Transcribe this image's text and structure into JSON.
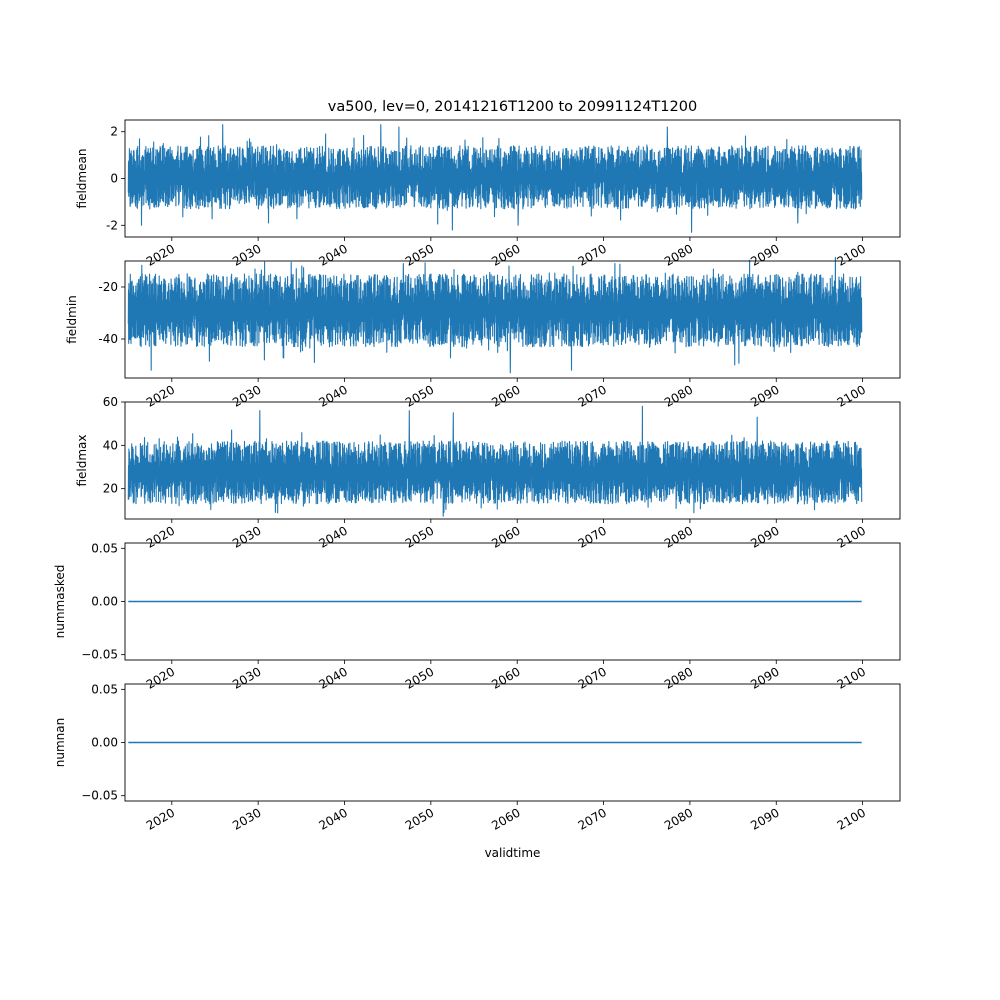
{
  "figure": {
    "title": "va500, lev=0, 20141216T1200 to 20991124T1200",
    "xlabel": "validtime"
  },
  "chart_data": [
    {
      "type": "line",
      "ylabel": "fieldmean",
      "xlim": [
        "2014-08-01",
        "2104-05-01"
      ],
      "ylim": [
        -2.5,
        2.5
      ],
      "yticks": [
        -2,
        0,
        2
      ],
      "xticks": [
        "2020",
        "2030",
        "2040",
        "2050",
        "2060",
        "2070",
        "2080",
        "2090",
        "2100"
      ],
      "series": [
        {
          "color": "#1f77b4",
          "x_range": [
            "2014-12-16T12:00",
            "2099-11-24T12:00"
          ],
          "typical_range": [
            -1.3,
            1.4
          ],
          "extreme_range": [
            -2.3,
            2.3
          ],
          "spikes": [
            {
              "x": 2025.9,
              "y": 2.3
            },
            {
              "x": 2044.2,
              "y": 2.3
            },
            {
              "x": 2046.3,
              "y": 2.2
            },
            {
              "x": 2077.4,
              "y": 2.2
            },
            {
              "x": 2052.5,
              "y": -2.2
            },
            {
              "x": 2080.2,
              "y": -2.3
            },
            {
              "x": 2016.5,
              "y": -2.0
            },
            {
              "x": 2031.2,
              "y": -1.9
            },
            {
              "x": 2060.1,
              "y": -2.0
            },
            {
              "x": 2092.5,
              "y": -1.9
            }
          ]
        }
      ]
    },
    {
      "type": "line",
      "ylabel": "fieldmin",
      "xlim": [
        "2014-08-01",
        "2104-05-01"
      ],
      "ylim": [
        -55,
        -10
      ],
      "yticks": [
        -40,
        -20
      ],
      "xticks": [
        "2020",
        "2030",
        "2040",
        "2050",
        "2060",
        "2070",
        "2080",
        "2090",
        "2100"
      ],
      "series": [
        {
          "color": "#1f77b4",
          "x_range": [
            "2014-12-16T12:00",
            "2099-11-24T12:00"
          ],
          "typical_range": [
            -43,
            -15
          ],
          "extreme_range": [
            -53,
            -11
          ],
          "spikes": [
            {
              "x": 2017.6,
              "y": -52
            },
            {
              "x": 2059.2,
              "y": -53
            },
            {
              "x": 2066.3,
              "y": -52
            },
            {
              "x": 2046.8,
              "y": -11
            },
            {
              "x": 2071.3,
              "y": -11
            },
            {
              "x": 2036.5,
              "y": -49
            },
            {
              "x": 2085.2,
              "y": -50
            }
          ]
        }
      ]
    },
    {
      "type": "line",
      "ylabel": "fieldmax",
      "xlim": [
        "2014-08-01",
        "2104-05-01"
      ],
      "ylim": [
        6,
        60
      ],
      "yticks": [
        20,
        40,
        60
      ],
      "xticks": [
        "2020",
        "2030",
        "2040",
        "2050",
        "2060",
        "2070",
        "2080",
        "2090",
        "2100"
      ],
      "series": [
        {
          "color": "#1f77b4",
          "x_range": [
            "2014-12-16T12:00",
            "2099-11-24T12:00"
          ],
          "typical_range": [
            13,
            42
          ],
          "extreme_range": [
            9,
            58
          ],
          "spikes": [
            {
              "x": 2074.5,
              "y": 58
            },
            {
              "x": 2030.2,
              "y": 56
            },
            {
              "x": 2047.5,
              "y": 56
            },
            {
              "x": 2052.6,
              "y": 55
            },
            {
              "x": 2087.8,
              "y": 53
            },
            {
              "x": 2032.0,
              "y": 9
            },
            {
              "x": 2051.5,
              "y": 9
            }
          ]
        }
      ]
    },
    {
      "type": "line",
      "ylabel": "nummasked",
      "xlim": [
        "2014-08-01",
        "2104-05-01"
      ],
      "ylim": [
        -0.055,
        0.055
      ],
      "yticks": [
        -0.05,
        0.0,
        0.05
      ],
      "yticklabels": [
        "−0.05",
        "0.00",
        "0.05"
      ],
      "xticks": [
        "2020",
        "2030",
        "2040",
        "2050",
        "2060",
        "2070",
        "2080",
        "2090",
        "2100"
      ],
      "series": [
        {
          "color": "#1f77b4",
          "x": [
            "2014-12-16T12:00",
            "2099-11-24T12:00"
          ],
          "y": [
            0,
            0
          ]
        }
      ]
    },
    {
      "type": "line",
      "ylabel": "numnan",
      "xlim": [
        "2014-08-01",
        "2104-05-01"
      ],
      "ylim": [
        -0.055,
        0.055
      ],
      "yticks": [
        -0.05,
        0.0,
        0.05
      ],
      "yticklabels": [
        "−0.05",
        "0.00",
        "0.05"
      ],
      "xticks": [
        "2020",
        "2030",
        "2040",
        "2050",
        "2060",
        "2070",
        "2080",
        "2090",
        "2100"
      ],
      "series": [
        {
          "color": "#1f77b4",
          "x": [
            "2014-12-16T12:00",
            "2099-11-24T12:00"
          ],
          "y": [
            0,
            0
          ]
        }
      ]
    }
  ]
}
